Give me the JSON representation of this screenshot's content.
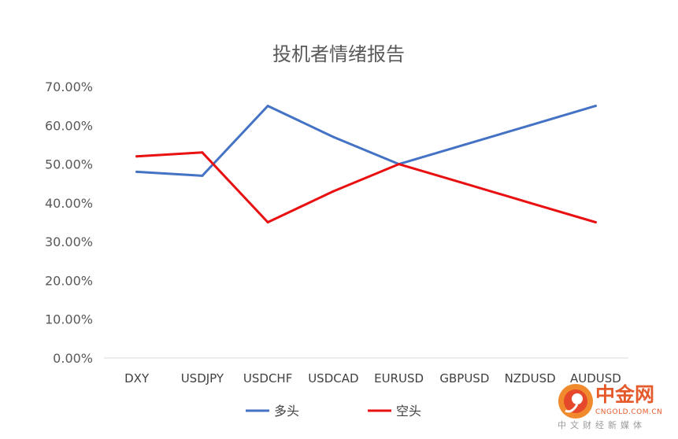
{
  "chart_data": {
    "type": "line",
    "title": "投机者情绪报告",
    "categories": [
      "DXY",
      "USDJPY",
      "USDCHF",
      "USDCAD",
      "EURUSD",
      "GBPUSD",
      "NZDUSD",
      "AUDUSD"
    ],
    "series": [
      {
        "name": "多头",
        "color": "#4472c4",
        "values": [
          48,
          47,
          65,
          57,
          50,
          55,
          60,
          65
        ]
      },
      {
        "name": "空头",
        "color": "#e81010",
        "values": [
          52,
          53,
          35,
          43,
          50,
          45,
          40,
          35
        ]
      }
    ],
    "ylim": [
      0,
      70
    ],
    "yticks": [
      "0.00%",
      "10.00%",
      "20.00%",
      "30.00%",
      "40.00%",
      "50.00%",
      "60.00%",
      "70.00%"
    ],
    "grid": false,
    "legend": "bottom"
  },
  "watermark": {
    "name_cn": "中金网",
    "domain": "CNGOLD.COM.CN",
    "tagline": "中文财经新媒体",
    "logo_icon": "cngold-logo-icon",
    "color": "#e55a2a"
  }
}
